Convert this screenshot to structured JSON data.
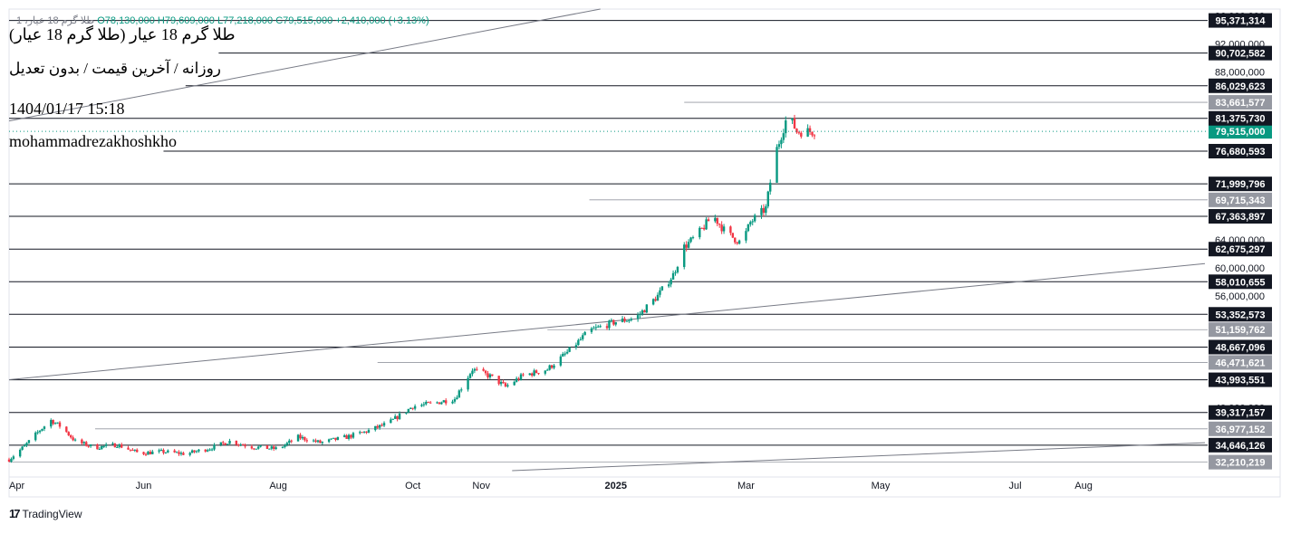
{
  "header": {
    "symbol": "طلا گرم 18 عیار، 1",
    "open": "O78,130,000",
    "high": "H79,609,000",
    "low": "L77,218,000",
    "close": "C79,515,000",
    "change": "+2,410,000 (+3.13%)"
  },
  "overlay": {
    "title": "طلا گرم 18 عیار (طلا گرم 18 عیار)",
    "subtitle": "روزانه / آخرین قیمت / بدون تعدیل",
    "datetime": "1404/01/17 15:18",
    "author": "mohammadrezakhoshkho"
  },
  "footer": {
    "brand": "TradingView",
    "logo_icon": "tradingview-logo-icon"
  },
  "colors": {
    "up": "#089981",
    "down": "#f23645",
    "label_dark": "#131722",
    "label_grey": "#9598a1",
    "current": "#089981"
  },
  "chart_data": {
    "type": "candlestick",
    "title": "",
    "y_range": [
      31000000,
      97000000
    ],
    "x_range": [
      "2024-04-01",
      "2025-09-25"
    ],
    "x_ticks": [
      {
        "date": "2024-04-01",
        "label": "Apr",
        "bold": false
      },
      {
        "date": "2024-06-01",
        "label": "Jun",
        "bold": false
      },
      {
        "date": "2024-08-01",
        "label": "Aug",
        "bold": false
      },
      {
        "date": "2024-10-01",
        "label": "Oct",
        "bold": false
      },
      {
        "date": "2024-11-01",
        "label": "Nov",
        "bold": false
      },
      {
        "date": "2025-01-01",
        "label": "2025",
        "bold": true
      },
      {
        "date": "2025-03-01",
        "label": "Mar",
        "bold": false
      },
      {
        "date": "2025-05-01",
        "label": "May",
        "bold": false
      },
      {
        "date": "2025-07-01",
        "label": "Jul",
        "bold": false
      },
      {
        "date": "2025-08-01",
        "label": "Aug",
        "bold": false
      }
    ],
    "y_ticks": [
      "96,000,000",
      "92,000,000",
      "88,000,000",
      "64,000,000",
      "60,000,000",
      "56,000,000",
      "40,000,000"
    ],
    "horizontal_levels": [
      {
        "value": 95371314,
        "label": "95,371,314",
        "style": "dark",
        "start": "2024-04-01"
      },
      {
        "value": 90702582,
        "label": "90,702,582",
        "style": "dark",
        "start": "2024-07-05"
      },
      {
        "value": 86029623,
        "label": "86,029,623",
        "style": "dark",
        "start": "2024-06-20"
      },
      {
        "value": 83661577,
        "label": "83,661,577",
        "style": "grey",
        "start": "2025-02-01"
      },
      {
        "value": 81375730,
        "label": "81,375,730",
        "style": "dark",
        "start": "2024-04-01"
      },
      {
        "value": 76680593,
        "label": "76,680,593",
        "style": "dark",
        "start": "2024-06-10"
      },
      {
        "value": 71999796,
        "label": "71,999,796",
        "style": "dark",
        "start": "2024-04-01"
      },
      {
        "value": 69715343,
        "label": "69,715,343",
        "style": "grey",
        "start": "2024-12-20"
      },
      {
        "value": 67363897,
        "label": "67,363,897",
        "style": "dark",
        "start": "2024-04-01"
      },
      {
        "value": 62675297,
        "label": "62,675,297",
        "style": "dark",
        "start": "2024-04-01"
      },
      {
        "value": 58010655,
        "label": "58,010,655",
        "style": "dark",
        "start": "2024-04-01"
      },
      {
        "value": 53352573,
        "label": "53,352,573",
        "style": "dark",
        "start": "2024-04-01"
      },
      {
        "value": 51159762,
        "label": "51,159,762",
        "style": "grey",
        "start": "2024-12-01"
      },
      {
        "value": 48667096,
        "label": "48,667,096",
        "style": "dark",
        "start": "2024-04-01"
      },
      {
        "value": 46471621,
        "label": "46,471,621",
        "style": "grey",
        "start": "2024-09-15"
      },
      {
        "value": 43993551,
        "label": "43,993,551",
        "style": "dark",
        "start": "2024-04-01"
      },
      {
        "value": 39317157,
        "label": "39,317,157",
        "style": "dark",
        "start": "2024-04-01"
      },
      {
        "value": 36977152,
        "label": "36,977,152",
        "style": "grey",
        "start": "2024-05-10"
      },
      {
        "value": 34646126,
        "label": "34,646,126",
        "style": "dark",
        "start": "2024-04-01"
      },
      {
        "value": 32210219,
        "label": "32,210,219",
        "style": "grey",
        "start": "2024-04-01"
      }
    ],
    "current_price": {
      "value": 79515000,
      "label": "79,515,000"
    },
    "trend_lines": [
      {
        "from": {
          "date": "2024-04-01",
          "value": 81000000
        },
        "to": {
          "date": "2024-12-25",
          "value": 97000000
        }
      },
      {
        "from": {
          "date": "2024-04-01",
          "value": 44000000
        },
        "to": {
          "date": "2025-09-25",
          "value": 60600000
        }
      },
      {
        "from": {
          "date": "2024-11-15",
          "value": 31000000
        },
        "to": {
          "date": "2025-09-25",
          "value": 35000000
        }
      }
    ],
    "price_path": [
      [
        "2024-04-01",
        32600000
      ],
      [
        "2024-04-08",
        34500000
      ],
      [
        "2024-04-15",
        36800000
      ],
      [
        "2024-04-20",
        38200000
      ],
      [
        "2024-04-25",
        37200000
      ],
      [
        "2024-05-01",
        35200000
      ],
      [
        "2024-05-10",
        34300000
      ],
      [
        "2024-05-20",
        34700000
      ],
      [
        "2024-05-30",
        33500000
      ],
      [
        "2024-06-10",
        33700000
      ],
      [
        "2024-06-20",
        33400000
      ],
      [
        "2024-07-01",
        34200000
      ],
      [
        "2024-07-10",
        35200000
      ],
      [
        "2024-07-20",
        34400000
      ],
      [
        "2024-08-01",
        34100000
      ],
      [
        "2024-08-10",
        35800000
      ],
      [
        "2024-08-20",
        35000000
      ],
      [
        "2024-09-01",
        35800000
      ],
      [
        "2024-09-10",
        36600000
      ],
      [
        "2024-09-20",
        37800000
      ],
      [
        "2024-10-01",
        40200000
      ],
      [
        "2024-10-10",
        40600000
      ],
      [
        "2024-10-20",
        41300000
      ],
      [
        "2024-10-28",
        45500000
      ],
      [
        "2024-11-05",
        44500000
      ],
      [
        "2024-11-12",
        43000000
      ],
      [
        "2024-11-20",
        44600000
      ],
      [
        "2024-12-01",
        45500000
      ],
      [
        "2024-12-10",
        47900000
      ],
      [
        "2024-12-20",
        51000000
      ],
      [
        "2025-01-01",
        52300000
      ],
      [
        "2025-01-10",
        52800000
      ],
      [
        "2025-01-20",
        56000000
      ],
      [
        "2025-01-27",
        59000000
      ],
      [
        "2025-02-01",
        63000000
      ],
      [
        "2025-02-07",
        64700000
      ],
      [
        "2025-02-14",
        67500000
      ],
      [
        "2025-02-20",
        65000000
      ],
      [
        "2025-02-27",
        63500000
      ],
      [
        "2025-03-03",
        66500000
      ],
      [
        "2025-03-10",
        68500000
      ],
      [
        "2025-03-14",
        76000000
      ],
      [
        "2025-03-20",
        82000000
      ],
      [
        "2025-03-24",
        79500000
      ],
      [
        "2025-04-01",
        79515000
      ]
    ]
  }
}
